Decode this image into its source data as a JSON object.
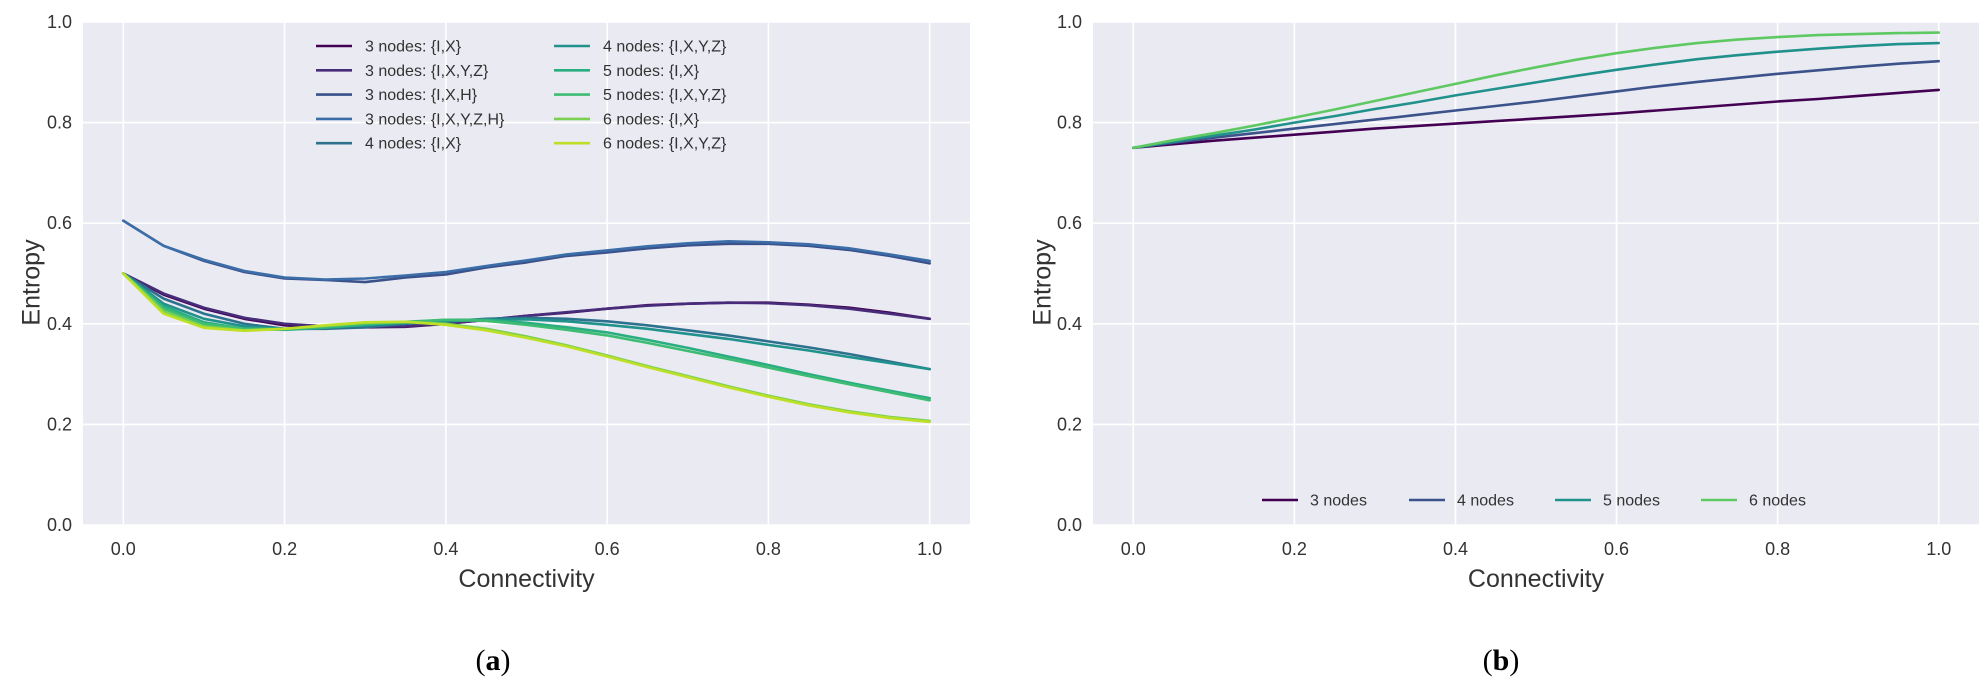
{
  "chart_data": [
    {
      "type": "line",
      "panel_label": "(a)",
      "xlabel": "Connectivity",
      "ylabel": "Entropy",
      "xlim": [
        -0.05,
        1.05
      ],
      "ylim": [
        0.0,
        1.0
      ],
      "xticks": [
        "0.0",
        "0.2",
        "0.4",
        "0.6",
        "0.8",
        "1.0"
      ],
      "yticks": [
        "0.0",
        "0.2",
        "0.4",
        "0.6",
        "0.8",
        "1.0"
      ],
      "grid": true,
      "legend_location": "upper-center",
      "x": [
        0.0,
        0.05,
        0.1,
        0.15,
        0.2,
        0.25,
        0.3,
        0.35,
        0.4,
        0.45,
        0.5,
        0.55,
        0.6,
        0.65,
        0.7,
        0.75,
        0.8,
        0.85,
        0.9,
        0.95,
        1.0
      ],
      "series": [
        {
          "name": "3 nodes: {I,X}",
          "color": "#440154",
          "values": [
            0.5,
            0.458,
            0.43,
            0.41,
            0.397,
            0.393,
            0.393,
            0.394,
            0.4,
            0.408,
            0.416,
            0.422,
            0.43,
            0.437,
            0.44,
            0.442,
            0.442,
            0.438,
            0.432,
            0.422,
            0.41
          ]
        },
        {
          "name": "3 nodes: {I,X,Y,Z}",
          "color": "#472c7a",
          "values": [
            0.5,
            0.46,
            0.432,
            0.412,
            0.4,
            0.395,
            0.394,
            0.395,
            0.4,
            0.408,
            0.416,
            0.423,
            0.43,
            0.436,
            0.44,
            0.442,
            0.441,
            0.437,
            0.43,
            0.42,
            0.41
          ]
        },
        {
          "name": "3 nodes: {I,X,H}",
          "color": "#3b518b",
          "values": [
            0.605,
            0.555,
            0.525,
            0.503,
            0.49,
            0.487,
            0.483,
            0.492,
            0.498,
            0.512,
            0.522,
            0.535,
            0.542,
            0.55,
            0.556,
            0.559,
            0.559,
            0.555,
            0.547,
            0.535,
            0.52
          ]
        },
        {
          "name": "3 nodes: {I,X,Y,Z,H}",
          "color": "#3b6ea8",
          "values": [
            0.605,
            0.555,
            0.527,
            0.505,
            0.492,
            0.488,
            0.49,
            0.496,
            0.503,
            0.515,
            0.526,
            0.538,
            0.546,
            0.554,
            0.56,
            0.564,
            0.562,
            0.558,
            0.55,
            0.538,
            0.525
          ]
        },
        {
          "name": "4 nodes: {I,X}",
          "color": "#2c728e",
          "values": [
            0.5,
            0.45,
            0.42,
            0.4,
            0.39,
            0.39,
            0.393,
            0.4,
            0.405,
            0.41,
            0.412,
            0.41,
            0.405,
            0.397,
            0.387,
            0.377,
            0.365,
            0.353,
            0.34,
            0.325,
            0.31
          ]
        },
        {
          "name": "4 nodes: {I,X,Y,Z}",
          "color": "#21918c",
          "values": [
            0.5,
            0.44,
            0.41,
            0.395,
            0.39,
            0.393,
            0.397,
            0.402,
            0.405,
            0.408,
            0.409,
            0.405,
            0.398,
            0.39,
            0.38,
            0.37,
            0.358,
            0.347,
            0.334,
            0.322,
            0.31
          ]
        },
        {
          "name": "5 nodes: {I,X}",
          "color": "#28ae80",
          "values": [
            0.5,
            0.435,
            0.403,
            0.39,
            0.388,
            0.392,
            0.398,
            0.403,
            0.408,
            0.408,
            0.402,
            0.393,
            0.383,
            0.368,
            0.352,
            0.335,
            0.318,
            0.3,
            0.283,
            0.267,
            0.252
          ]
        },
        {
          "name": "5 nodes: {I,X,Y,Z}",
          "color": "#3fbc73",
          "values": [
            0.5,
            0.43,
            0.4,
            0.39,
            0.39,
            0.394,
            0.4,
            0.404,
            0.408,
            0.406,
            0.398,
            0.388,
            0.377,
            0.362,
            0.346,
            0.33,
            0.313,
            0.296,
            0.28,
            0.264,
            0.248
          ]
        },
        {
          "name": "6 nodes: {I,X}",
          "color": "#7ad151",
          "values": [
            0.5,
            0.425,
            0.395,
            0.387,
            0.39,
            0.396,
            0.402,
            0.404,
            0.4,
            0.39,
            0.375,
            0.357,
            0.337,
            0.316,
            0.296,
            0.276,
            0.257,
            0.24,
            0.226,
            0.215,
            0.207
          ]
        },
        {
          "name": "6 nodes: {I,X,Y,Z}",
          "color": "#bddf26",
          "values": [
            0.5,
            0.42,
            0.392,
            0.386,
            0.39,
            0.397,
            0.403,
            0.404,
            0.398,
            0.387,
            0.372,
            0.355,
            0.335,
            0.314,
            0.294,
            0.274,
            0.255,
            0.238,
            0.224,
            0.213,
            0.205
          ]
        }
      ]
    },
    {
      "type": "line",
      "panel_label": "(b)",
      "xlabel": "Connectivity",
      "ylabel": "Entropy",
      "xlim": [
        -0.05,
        1.05
      ],
      "ylim": [
        0.0,
        1.0
      ],
      "xticks": [
        "0.0",
        "0.2",
        "0.4",
        "0.6",
        "0.8",
        "1.0"
      ],
      "yticks": [
        "0.0",
        "0.2",
        "0.4",
        "0.6",
        "0.8",
        "1.0"
      ],
      "grid": true,
      "legend_location": "lower-center",
      "x": [
        0.0,
        0.05,
        0.1,
        0.15,
        0.2,
        0.25,
        0.3,
        0.35,
        0.4,
        0.45,
        0.5,
        0.55,
        0.6,
        0.65,
        0.7,
        0.75,
        0.8,
        0.85,
        0.9,
        0.95,
        1.0
      ],
      "series": [
        {
          "name": "3 nodes",
          "color": "#440154",
          "values": [
            0.75,
            0.757,
            0.764,
            0.77,
            0.776,
            0.782,
            0.788,
            0.793,
            0.798,
            0.803,
            0.808,
            0.813,
            0.818,
            0.824,
            0.83,
            0.836,
            0.842,
            0.847,
            0.853,
            0.859,
            0.865
          ]
        },
        {
          "name": "4 nodes",
          "color": "#3b528b",
          "values": [
            0.75,
            0.76,
            0.77,
            0.779,
            0.788,
            0.797,
            0.806,
            0.815,
            0.824,
            0.833,
            0.842,
            0.852,
            0.862,
            0.872,
            0.881,
            0.889,
            0.897,
            0.904,
            0.911,
            0.917,
            0.922
          ]
        },
        {
          "name": "5 nodes",
          "color": "#21918c",
          "values": [
            0.75,
            0.762,
            0.774,
            0.786,
            0.8,
            0.813,
            0.827,
            0.84,
            0.854,
            0.867,
            0.88,
            0.893,
            0.905,
            0.916,
            0.926,
            0.934,
            0.941,
            0.947,
            0.952,
            0.956,
            0.958
          ]
        },
        {
          "name": "6 nodes",
          "color": "#5ec962",
          "values": [
            0.75,
            0.765,
            0.779,
            0.794,
            0.81,
            0.826,
            0.843,
            0.86,
            0.877,
            0.894,
            0.91,
            0.925,
            0.938,
            0.949,
            0.958,
            0.965,
            0.97,
            0.974,
            0.976,
            0.978,
            0.979
          ]
        }
      ]
    }
  ]
}
